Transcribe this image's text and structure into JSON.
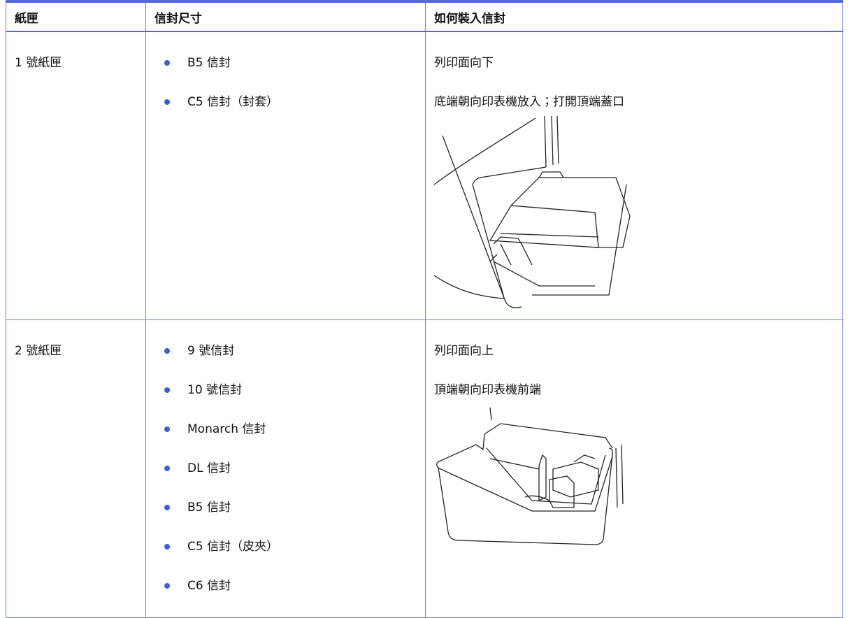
{
  "table": {
    "header": [
      "紙匣",
      "信封尺寸",
      "如何裝入信封"
    ],
    "rows": [
      {
        "tray": "1 號紙匣",
        "sizes": [
          "B5 信封",
          "C5 信封（封套）"
        ],
        "instructions": [
          "列印面向下",
          "底端朝向印表機放入；打開頂端蓋口"
        ]
      },
      {
        "tray": "2 號紙匣",
        "sizes": [
          "9 號信封",
          "10 號信封",
          "Monarch 信封",
          "DL 信封",
          "B5 信封",
          "C5 信封（皮夾）",
          "C6 信封"
        ],
        "instructions": [
          "列印面向上",
          "頂端朝向印表機前端"
        ]
      }
    ]
  }
}
